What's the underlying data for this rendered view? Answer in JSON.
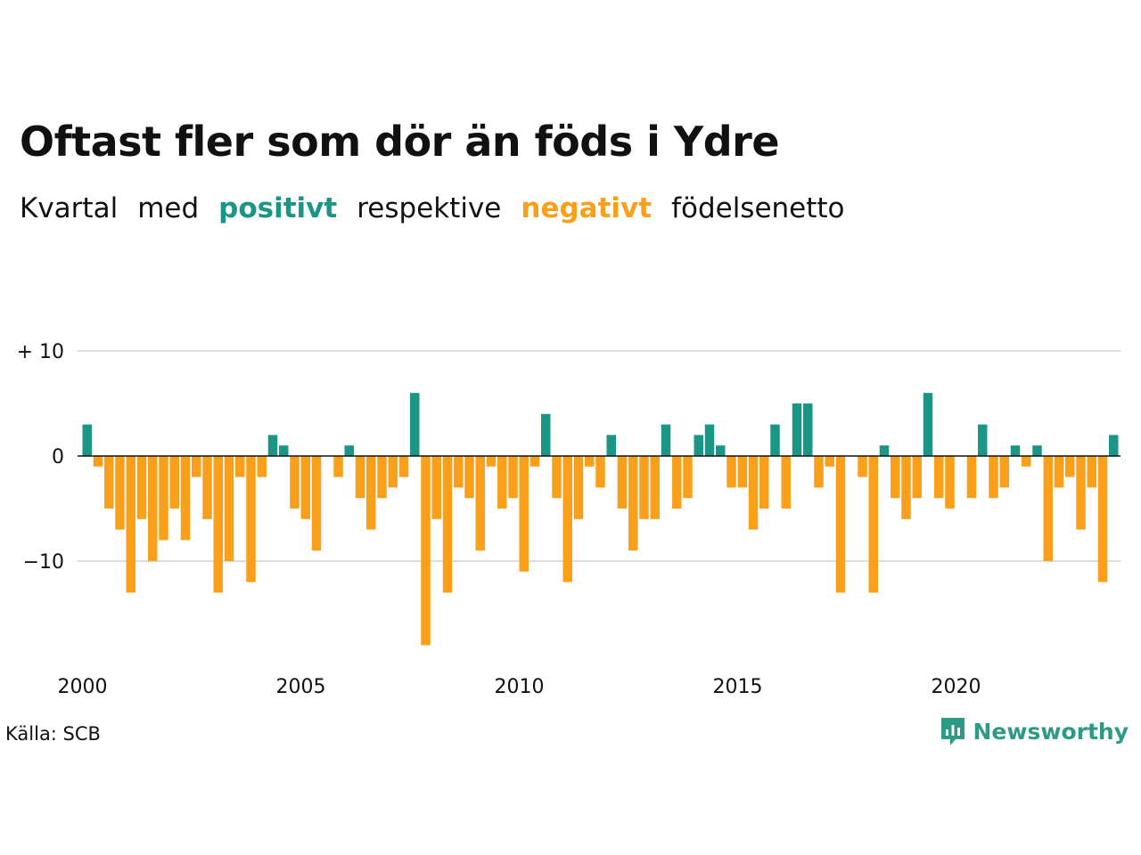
{
  "title": "Oftast fler som dör än föds i Ydre",
  "subtitle": {
    "w1": "Kvartal",
    "w2": "med",
    "positive": "positivt",
    "w3": "respektive",
    "negative": "negativt",
    "w4": "födelsenetto"
  },
  "colors": {
    "positive": "#1b9686",
    "negative": "#f99f1a",
    "grid": "#dddddd",
    "zero": "#111111"
  },
  "source": "Källa: SCB",
  "brand": "Newsworthy",
  "chart_data": {
    "type": "bar",
    "x_start_year": 2000,
    "x_start_quarter": 1,
    "xticks": [
      "2000",
      "2005",
      "2010",
      "2015",
      "2020"
    ],
    "yticks": [
      {
        "value": 10,
        "label": "+ 10"
      },
      {
        "value": 0,
        "label": "0"
      },
      {
        "value": -10,
        "label": "−10"
      }
    ],
    "ylim": [
      -18,
      10
    ],
    "grid": true,
    "values": [
      3,
      -1,
      -5,
      -7,
      -13,
      -6,
      -10,
      -8,
      -5,
      -8,
      -2,
      -6,
      -13,
      -10,
      -2,
      -12,
      -2,
      2,
      1,
      -5,
      -6,
      -9,
      0,
      -2,
      1,
      -4,
      -7,
      -4,
      -3,
      -2,
      6,
      -18,
      -6,
      -13,
      -3,
      -4,
      -9,
      -1,
      -5,
      -4,
      -11,
      -1,
      4,
      -4,
      -12,
      -6,
      -1,
      -3,
      2,
      -5,
      -9,
      -6,
      -6,
      3,
      -5,
      -4,
      2,
      3,
      1,
      -3,
      -3,
      -7,
      -5,
      3,
      -5,
      5,
      5,
      -3,
      -1,
      -13,
      0,
      -2,
      -13,
      1,
      -4,
      -6,
      -4,
      6,
      -4,
      -5,
      0,
      -4,
      3,
      -4,
      -3,
      1,
      -1,
      1,
      -10,
      -3,
      -2,
      -7,
      -3,
      -12,
      2
    ]
  }
}
